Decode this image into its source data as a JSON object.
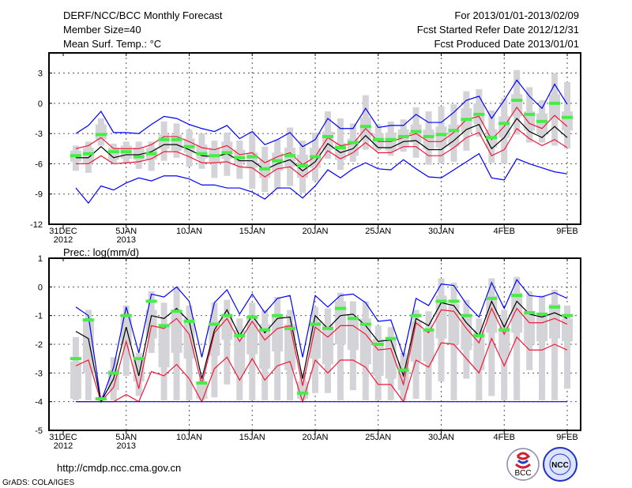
{
  "header": {
    "title": "DERF/NCC/BCC Monthly Forecast",
    "member_size": "Member Size=40",
    "variable": "Mean Surf. Temp.: °C",
    "period": "For 2013/01/01-2013/02/09",
    "started": "Fcst Started Refer Date 2012/12/31",
    "produced": "Fcst Produced Date 2013/01/01"
  },
  "footer": {
    "url": "http://cmdp.ncc.cma.gov.cn",
    "credit": "GrADS: COLA/IGES",
    "logo_bcc": "BCC",
    "logo_ncc": "NCC"
  },
  "colors": {
    "max_min": "#0000ff",
    "spread": "#f01838",
    "mean": "#000000",
    "median": "#44ee44",
    "box": "#d4d4d8",
    "grid": "#555555"
  },
  "chart_data": [
    {
      "type": "line",
      "title": "Mean Surf. Temp.: °C",
      "ylabel": "°C",
      "ylim": [
        -12,
        5
      ],
      "yticks": [
        "3",
        "0",
        "-3",
        "-6",
        "-9",
        "-12"
      ],
      "ytick_values": [
        3,
        0,
        -3,
        -6,
        -9,
        -12
      ],
      "xtick_days": [
        0,
        5,
        10,
        15,
        20,
        25,
        30,
        35,
        40
      ],
      "xtick_labels": [
        "31DEC",
        "5JAN",
        "10JAN",
        "15JAN",
        "20JAN",
        "25JAN",
        "30JAN",
        "4FEB",
        "9FEB"
      ],
      "xtick_sublabels": [
        "2012",
        "2013",
        "",
        "",
        "",
        "",
        "",
        "",
        ""
      ],
      "grid": true,
      "days": [
        1,
        2,
        3,
        4,
        5,
        6,
        7,
        8,
        9,
        10,
        11,
        12,
        13,
        14,
        15,
        16,
        17,
        18,
        19,
        20,
        21,
        22,
        23,
        24,
        25,
        26,
        27,
        28,
        29,
        30,
        31,
        32,
        33,
        34,
        35,
        36,
        37,
        38,
        39,
        40
      ],
      "series": [
        {
          "name": "max",
          "color": "#0000ff",
          "values": [
            -3.0,
            -2.2,
            -0.8,
            -2.9,
            -2.9,
            -3.0,
            -2.1,
            -1.3,
            -1.5,
            -2.1,
            -2.5,
            -2.8,
            -2.2,
            -3.5,
            -2.8,
            -4.1,
            -3.6,
            -2.9,
            -4.3,
            -3.6,
            -1.5,
            -2.5,
            -2.5,
            -0.5,
            -2.4,
            -2.2,
            -2.2,
            -1.1,
            -1.9,
            -1.9,
            -0.9,
            0.3,
            0.7,
            -1.5,
            0.3,
            2.3,
            0.7,
            -0.5,
            1.9,
            -0.1
          ]
        },
        {
          "name": "upper",
          "color": "#f01838",
          "values": [
            -4.5,
            -4.2,
            -3.4,
            -4.5,
            -4.5,
            -4.5,
            -4.1,
            -3.3,
            -3.3,
            -3.8,
            -4.4,
            -4.6,
            -4.2,
            -5.1,
            -4.9,
            -5.9,
            -5.3,
            -4.9,
            -6.1,
            -5.3,
            -3.4,
            -4.2,
            -4.0,
            -2.5,
            -3.8,
            -3.8,
            -3.4,
            -3.0,
            -3.8,
            -3.8,
            -2.9,
            -1.6,
            -1.3,
            -3.6,
            -2.3,
            -0.4,
            -2.0,
            -2.5,
            -1.2,
            -2.3
          ]
        },
        {
          "name": "mean",
          "color": "#000000",
          "values": [
            -5.4,
            -5.4,
            -4.3,
            -5.4,
            -5.1,
            -5.1,
            -4.8,
            -4.1,
            -4.1,
            -4.6,
            -5.2,
            -5.3,
            -5.0,
            -5.7,
            -5.7,
            -6.6,
            -6.0,
            -5.6,
            -6.7,
            -5.8,
            -4.0,
            -4.9,
            -4.5,
            -3.2,
            -4.4,
            -4.4,
            -3.8,
            -3.7,
            -4.6,
            -4.6,
            -3.7,
            -2.6,
            -2.1,
            -4.5,
            -3.4,
            -1.5,
            -2.8,
            -3.4,
            -2.3,
            -3.4
          ]
        },
        {
          "name": "lower",
          "color": "#f01838",
          "values": [
            -6.0,
            -6.0,
            -5.2,
            -6.0,
            -5.9,
            -5.8,
            -5.5,
            -4.8,
            -4.8,
            -5.3,
            -5.9,
            -5.9,
            -5.8,
            -6.3,
            -6.4,
            -7.3,
            -6.5,
            -6.3,
            -7.3,
            -6.4,
            -4.7,
            -5.5,
            -4.9,
            -3.9,
            -4.9,
            -4.9,
            -4.3,
            -4.3,
            -5.2,
            -5.2,
            -4.4,
            -3.4,
            -2.9,
            -5.2,
            -4.6,
            -2.5,
            -3.5,
            -4.2,
            -3.6,
            -4.4
          ]
        },
        {
          "name": "min",
          "color": "#0000ff",
          "values": [
            -8.4,
            -9.9,
            -8.2,
            -8.6,
            -7.9,
            -7.4,
            -7.7,
            -7.2,
            -7.2,
            -7.5,
            -8.1,
            -8.1,
            -8.4,
            -8.4,
            -8.8,
            -9.5,
            -8.4,
            -8.4,
            -9.4,
            -8.2,
            -6.6,
            -7.4,
            -6.5,
            -5.9,
            -6.5,
            -6.6,
            -5.6,
            -6.5,
            -7.3,
            -7.4,
            -6.6,
            -5.8,
            -5.0,
            -7.4,
            -7.6,
            -5.5,
            -6.0,
            -6.4,
            -6.8,
            -7.0
          ]
        }
      ],
      "median": [
        -5.2,
        -5.0,
        -3.1,
        -4.8,
        -4.8,
        -5.3,
        -5.0,
        -3.6,
        -3.6,
        -4.3,
        -5.0,
        -5.2,
        -4.9,
        -5.4,
        -5.3,
        -6.5,
        -5.7,
        -5.2,
        -6.2,
        -5.3,
        -3.3,
        -4.4,
        -3.9,
        -2.3,
        -3.6,
        -3.6,
        -3.3,
        -2.8,
        -3.3,
        -3.1,
        -2.7,
        -1.6,
        -1.1,
        -3.4,
        -2.0,
        0.3,
        -1.1,
        -1.8,
        0.0,
        -1.4
      ],
      "box_high": [
        -4.7,
        -4.4,
        -2.1,
        -4.4,
        -4.2,
        -4.4,
        -4.4,
        -3.1,
        -3.1,
        -3.5,
        -4.1,
        -4.4,
        -3.8,
        -4.6,
        -4.9,
        -5.6,
        -4.9,
        -4.4,
        -5.1,
        -4.4,
        -2.8,
        -3.9,
        -3.5,
        -1.4,
        -3.0,
        -2.9,
        -2.6,
        -2.1,
        -2.6,
        -2.3,
        -2.1,
        -0.5,
        0.0,
        -2.6,
        -1.3,
        0.9,
        -0.8,
        -1.0,
        0.9,
        -0.8
      ],
      "box_low": [
        -5.8,
        -5.9,
        -3.6,
        -5.6,
        -5.5,
        -5.6,
        -5.6,
        -4.5,
        -4.7,
        -4.9,
        -5.5,
        -5.8,
        -5.5,
        -5.9,
        -6.4,
        -7.4,
        -6.7,
        -6.3,
        -7.4,
        -6.4,
        -4.6,
        -5.6,
        -5.2,
        -3.6,
        -4.4,
        -4.7,
        -4.4,
        -3.9,
        -4.6,
        -4.4,
        -4.3,
        -2.9,
        -2.1,
        -4.4,
        -3.4,
        -1.3,
        -2.7,
        -3.0,
        -1.6,
        -2.7
      ],
      "whisker_high": [
        -4.2,
        -3.8,
        -1.5,
        -4.0,
        -3.8,
        -3.8,
        -3.8,
        -1.8,
        -2.0,
        -2.6,
        -3.0,
        -3.7,
        -2.9,
        -3.7,
        -2.8,
        -4.3,
        -3.6,
        -2.4,
        -3.7,
        -2.9,
        -0.8,
        -1.5,
        -2.0,
        0.8,
        -2.1,
        -1.8,
        -1.6,
        -0.4,
        -0.8,
        -0.3,
        -0.1,
        1.2,
        1.4,
        -0.7,
        0.5,
        3.3,
        1.6,
        0.3,
        3.0,
        2.1
      ],
      "whisker_low": [
        -6.7,
        -6.9,
        -4.2,
        -5.9,
        -5.9,
        -6.5,
        -6.7,
        -5.7,
        -5.4,
        -6.3,
        -6.5,
        -7.4,
        -7.2,
        -7.5,
        -8.5,
        -8.8,
        -8.5,
        -8.2,
        -8.9,
        -7.7,
        -5.5,
        -6.6,
        -5.8,
        -4.6,
        -4.7,
        -5.2,
        -4.8,
        -5.4,
        -6.1,
        -5.9,
        -5.8,
        -4.7,
        -3.3,
        -5.9,
        -6.0,
        -3.1,
        -3.9,
        -3.9,
        -4.2,
        -4.5
      ]
    },
    {
      "type": "line",
      "title": "Prec.: log(mm/d)",
      "ylabel": "log(mm/d)",
      "ylim": [
        -5,
        1
      ],
      "yticks": [
        "1",
        "0",
        "-1",
        "-2",
        "-3",
        "-4",
        "-5"
      ],
      "ytick_values": [
        1,
        0,
        -1,
        -2,
        -3,
        -4,
        -5
      ],
      "xtick_days": [
        0,
        5,
        10,
        15,
        20,
        25,
        30,
        35,
        40
      ],
      "xtick_labels": [
        "31DEC",
        "5JAN",
        "10JAN",
        "15JAN",
        "20JAN",
        "25JAN",
        "30JAN",
        "4FEB",
        "9FEB"
      ],
      "xtick_sublabels": [
        "2012",
        "2013",
        "",
        "",
        "",
        "",
        "",
        "",
        ""
      ],
      "grid": true,
      "days": [
        1,
        2,
        3,
        4,
        5,
        6,
        7,
        8,
        9,
        10,
        11,
        12,
        13,
        14,
        15,
        16,
        17,
        18,
        19,
        20,
        21,
        22,
        23,
        24,
        25,
        26,
        27,
        28,
        29,
        30,
        31,
        32,
        33,
        34,
        35,
        36,
        37,
        38,
        39,
        40
      ],
      "series": [
        {
          "name": "max",
          "color": "#0000ff",
          "values": [
            -0.7,
            -1.0,
            -4.0,
            -2.8,
            -0.7,
            -2.3,
            -0.25,
            -0.35,
            0.0,
            -0.5,
            -2.45,
            -0.55,
            -0.1,
            -0.95,
            -0.25,
            -0.9,
            -0.4,
            -0.3,
            -2.45,
            -0.3,
            -0.7,
            -0.3,
            -0.25,
            -0.55,
            -1.2,
            -1.15,
            -2.4,
            -0.4,
            -0.65,
            0.1,
            0.05,
            -0.6,
            -1.05,
            0.15,
            -0.75,
            0.25,
            -0.3,
            -0.35,
            -0.2,
            -0.4
          ]
        },
        {
          "name": "upper",
          "color": "#f01838",
          "values": [
            -2.75,
            -2.55,
            -4.0,
            -3.5,
            -1.9,
            -3.55,
            -1.35,
            -1.45,
            -1.1,
            -1.65,
            -3.4,
            -1.6,
            -1.1,
            -1.9,
            -1.2,
            -1.85,
            -1.45,
            -1.35,
            -3.45,
            -1.4,
            -1.75,
            -1.35,
            -1.35,
            -1.65,
            -2.2,
            -2.15,
            -3.4,
            -1.25,
            -1.6,
            -0.8,
            -0.85,
            -1.45,
            -1.95,
            -0.75,
            -1.65,
            -0.75,
            -1.25,
            -1.25,
            -1.1,
            -1.3
          ]
        },
        {
          "name": "mean",
          "color": "#000000",
          "values": [
            -1.55,
            -1.8,
            -4.0,
            -3.2,
            -1.4,
            -3.1,
            -1.0,
            -1.1,
            -0.75,
            -1.2,
            -3.2,
            -1.5,
            -0.8,
            -1.7,
            -1.0,
            -1.6,
            -1.1,
            -1.05,
            -3.2,
            -1.0,
            -1.45,
            -1.0,
            -0.95,
            -1.35,
            -1.9,
            -1.85,
            -3.1,
            -1.1,
            -1.35,
            -0.55,
            -0.65,
            -1.25,
            -1.7,
            -0.5,
            -1.4,
            -0.5,
            -0.95,
            -1.05,
            -0.9,
            -1.1
          ]
        },
        {
          "name": "lower",
          "color": "#f01838",
          "values": [
            -4.0,
            -4.0,
            -4.0,
            -4.0,
            -3.75,
            -4.0,
            -2.95,
            -3.1,
            -2.7,
            -3.2,
            -4.0,
            -2.85,
            -2.45,
            -3.25,
            -2.5,
            -3.25,
            -2.75,
            -2.6,
            -4.0,
            -2.55,
            -3.0,
            -2.55,
            -2.55,
            -2.8,
            -3.4,
            -3.4,
            -4.0,
            -2.55,
            -2.8,
            -1.95,
            -2.0,
            -2.5,
            -3.0,
            -1.8,
            -2.75,
            -1.75,
            -2.2,
            -2.2,
            -2.0,
            -2.2
          ]
        },
        {
          "name": "min",
          "color": "#0000ff",
          "values": [
            -4,
            -4,
            -4,
            -4,
            -4,
            -4,
            -4,
            -4,
            -4,
            -4,
            -4,
            -4,
            -4,
            -4,
            -4,
            -4,
            -4,
            -4,
            -4,
            -4,
            -4,
            -4,
            -4,
            -4,
            -4,
            -4,
            -4,
            -4,
            -4,
            -4,
            -4,
            -4,
            -4,
            -4,
            -4,
            -4,
            -4,
            -4,
            -4,
            -4
          ]
        }
      ],
      "median": [
        -2.5,
        -1.15,
        -3.9,
        -3.0,
        -1.0,
        -2.5,
        -0.5,
        -1.35,
        -0.85,
        -1.2,
        -3.35,
        -1.3,
        -1.0,
        -1.7,
        -1.05,
        -1.5,
        -1.0,
        -1.45,
        -3.7,
        -1.3,
        -1.45,
        -0.75,
        -1.1,
        -1.3,
        -2.0,
        -1.8,
        -2.9,
        -1.0,
        -1.5,
        -0.5,
        -0.5,
        -1.0,
        -1.7,
        -0.4,
        -1.5,
        -0.3,
        -0.9,
        -0.95,
        -0.7,
        -1.0
      ],
      "box_high": [
        -2.6,
        -1.2,
        -3.85,
        -2.9,
        -1.0,
        -2.5,
        -0.8,
        -1.3,
        -0.8,
        -1.1,
        -3.3,
        -1.2,
        -1.0,
        -1.5,
        -1.0,
        -1.3,
        -1.0,
        -1.3,
        -3.3,
        -1.2,
        -1.3,
        -0.5,
        -1.0,
        -1.1,
        -1.8,
        -1.8,
        -2.6,
        -1.2,
        -1.5,
        -0.3,
        -0.6,
        -1.0,
        -1.5,
        -0.3,
        -1.4,
        -0.2,
        -0.9,
        -0.9,
        -0.6,
        -1.1
      ],
      "box_low": [
        -3.9,
        -3.0,
        -3.95,
        -3.6,
        -2.0,
        -3.3,
        -1.8,
        -2.8,
        -2.3,
        -2.5,
        -3.9,
        -2.4,
        -1.85,
        -3.0,
        -2.35,
        -2.85,
        -2.25,
        -2.9,
        -3.9,
        -2.5,
        -2.7,
        -2.0,
        -2.2,
        -2.7,
        -3.1,
        -3.2,
        -3.6,
        -2.6,
        -2.6,
        -1.8,
        -2.0,
        -2.2,
        -2.9,
        -1.6,
        -2.4,
        -1.6,
        -2.0,
        -1.9,
        -1.8,
        -1.9
      ],
      "whisker_high": [
        -1.75,
        -0.8,
        -3.8,
        -2.45,
        -0.65,
        -2.3,
        -0.15,
        -0.55,
        0.0,
        -0.65,
        -3.2,
        -0.55,
        -0.45,
        -1.1,
        -0.55,
        -0.8,
        -0.35,
        -0.8,
        -3.0,
        -0.7,
        -0.75,
        -0.2,
        -0.5,
        -0.5,
        -1.35,
        -1.4,
        -2.3,
        -0.8,
        -0.85,
        0.3,
        0.15,
        -0.45,
        -1.1,
        0.3,
        -0.8,
        0.35,
        -0.15,
        -0.3,
        -0.1,
        -0.65
      ],
      "whisker_low": [
        -3.95,
        -3.95,
        -4.0,
        -3.95,
        -3.1,
        -3.8,
        -2.3,
        -3.95,
        -3.95,
        -3.95,
        -3.95,
        -3.85,
        -3.4,
        -3.95,
        -3.95,
        -3.95,
        -3.95,
        -3.95,
        -3.95,
        -3.7,
        -3.7,
        -3.95,
        -3.6,
        -3.95,
        -3.95,
        -3.95,
        -3.95,
        -3.9,
        -3.95,
        -3.3,
        -3.95,
        -3.2,
        -3.95,
        -3.8,
        -3.95,
        -3.95,
        -2.9,
        -3.95,
        -3.95,
        -3.55
      ]
    }
  ]
}
